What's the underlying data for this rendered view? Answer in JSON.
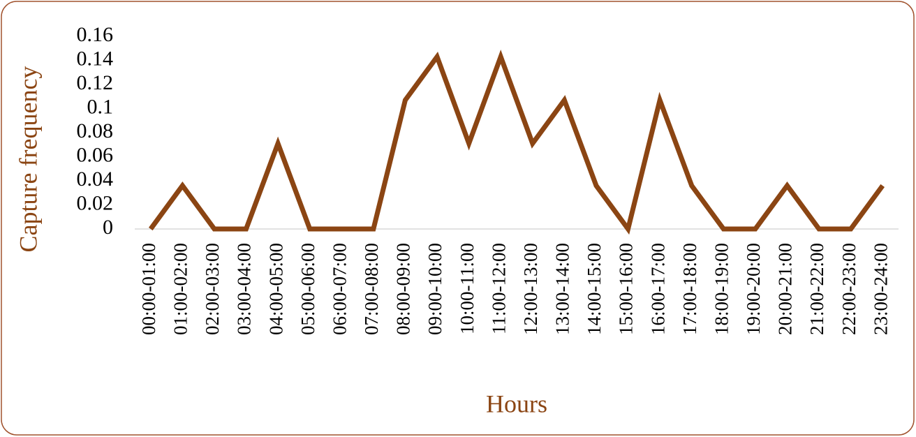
{
  "chart_data": {
    "type": "line",
    "x_label": "Hours",
    "y_label": "Capture frequency",
    "categories": [
      "00:00-01:00",
      "01:00-02:00",
      "02:00-03:00",
      "03:00-04:00",
      "04:00-05:00",
      "05:00-06:00",
      "06:00-07:00",
      "07:00-08:00",
      "08:00-09:00",
      "09:00-10:00",
      "10:00-11:00",
      "11:00-12:00",
      "12:00-13:00",
      "13:00-14:00",
      "14:00-15:00",
      "15:00-16:00",
      "16:00-17:00",
      "17:00-18:00",
      "18:00-19:00",
      "19:00-20:00",
      "20:00-21:00",
      "21:00-22:00",
      "22:00-23:00",
      "23:00-24:00"
    ],
    "values": [
      0,
      0.036,
      0,
      0,
      0.071,
      0,
      0,
      0,
      0.107,
      0.143,
      0.071,
      0.143,
      0.071,
      0.107,
      0.036,
      0,
      0.107,
      0.036,
      0,
      0,
      0.036,
      0,
      0,
      0.036
    ],
    "color": "#8b4513",
    "ylim": [
      0,
      0.16
    ],
    "yticks": [
      0,
      0.02,
      0.04,
      0.06,
      0.08,
      0.1,
      0.12,
      0.14,
      0.16
    ],
    "grid": false
  }
}
